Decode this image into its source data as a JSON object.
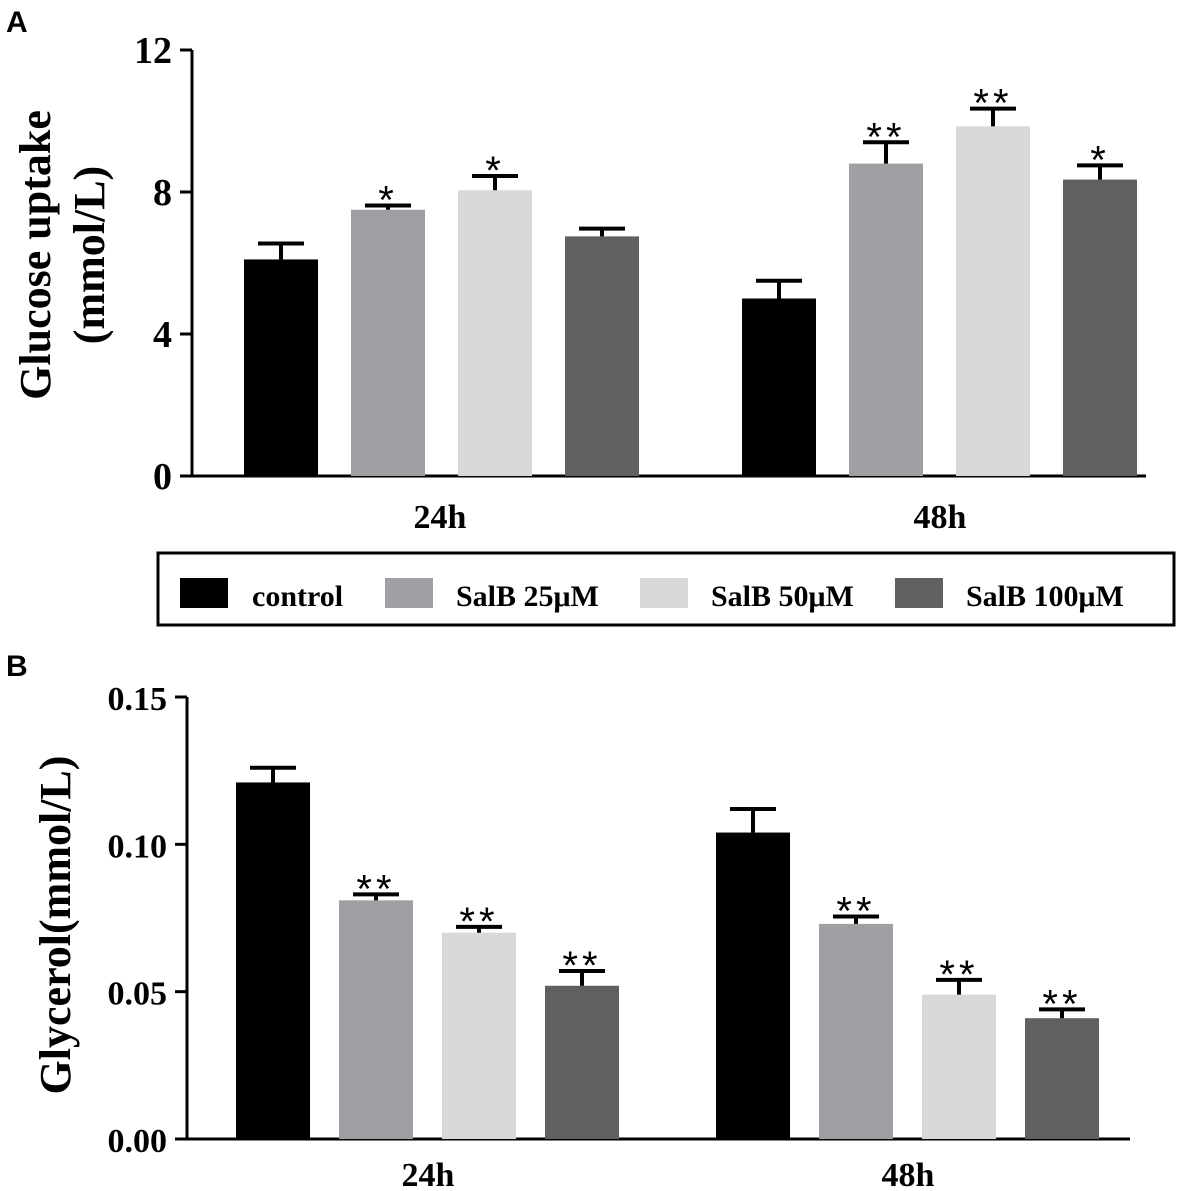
{
  "legend": {
    "entries": [
      {
        "label": "control",
        "color": "#000000"
      },
      {
        "label": "SalB 25μM",
        "color": "#a0a0a4"
      },
      {
        "label": "SalB 50μM",
        "color": "#d8d8d8"
      },
      {
        "label": "SalB 100μM",
        "color": "#606060"
      }
    ]
  },
  "chart_data": [
    {
      "panel": "A",
      "type": "bar",
      "ylabel_line1": "Glucose uptake",
      "ylabel_line2": "(mmol/L)",
      "ylim": [
        0,
        12
      ],
      "yticks": [
        "0",
        "4",
        "8",
        "12"
      ],
      "ytick_values": [
        0,
        4,
        8,
        12
      ],
      "categories": [
        "24h",
        "48h"
      ],
      "series": [
        {
          "name": "control",
          "values": [
            6.1,
            5.0
          ],
          "errors": [
            0.45,
            0.5
          ],
          "sig": [
            "",
            ""
          ]
        },
        {
          "name": "SalB 25μM",
          "values": [
            7.5,
            8.8
          ],
          "errors": [
            0.12,
            0.6
          ],
          "sig": [
            "*",
            "**"
          ]
        },
        {
          "name": "SalB 50μM",
          "values": [
            8.05,
            9.85
          ],
          "errors": [
            0.4,
            0.5
          ],
          "sig": [
            "*",
            "**"
          ]
        },
        {
          "name": "SalB 100μM",
          "values": [
            6.75,
            8.35
          ],
          "errors": [
            0.22,
            0.4
          ],
          "sig": [
            "",
            "*"
          ]
        }
      ]
    },
    {
      "panel": "B",
      "type": "bar",
      "ylabel_line1": "Glycerol(mmol/L)",
      "ylim": [
        0,
        0.15
      ],
      "yticks": [
        "0.00",
        "0.05",
        "0.10",
        "0.15"
      ],
      "ytick_values": [
        0,
        0.05,
        0.1,
        0.15
      ],
      "categories": [
        "24h",
        "48h"
      ],
      "series": [
        {
          "name": "control",
          "values": [
            0.121,
            0.104
          ],
          "errors": [
            0.005,
            0.008
          ],
          "sig": [
            "",
            ""
          ]
        },
        {
          "name": "SalB 25μM",
          "values": [
            0.081,
            0.073
          ],
          "errors": [
            0.002,
            0.0025
          ],
          "sig": [
            "**",
            "**"
          ]
        },
        {
          "name": "SalB 50μM",
          "values": [
            0.07,
            0.049
          ],
          "errors": [
            0.002,
            0.005
          ],
          "sig": [
            "**",
            "**"
          ]
        },
        {
          "name": "SalB 100μM",
          "values": [
            0.052,
            0.041
          ],
          "errors": [
            0.005,
            0.003
          ],
          "sig": [
            "**",
            "**"
          ]
        }
      ]
    }
  ]
}
